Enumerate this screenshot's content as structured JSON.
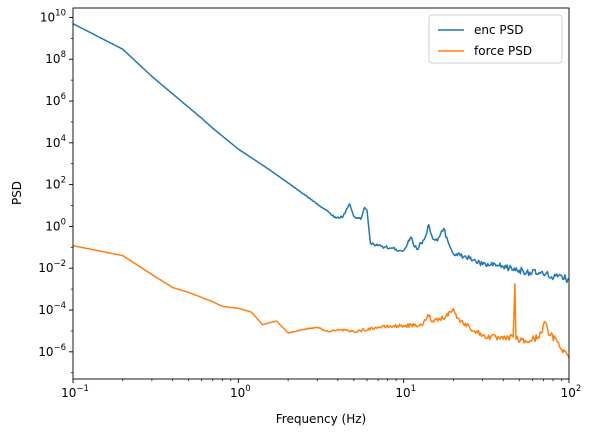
{
  "chart_data": {
    "type": "line",
    "title": "",
    "xlabel": "Frequency (Hz)",
    "ylabel": "PSD",
    "xscale": "log",
    "yscale": "log",
    "xlim": [
      0.1,
      100
    ],
    "ylim_exponent": [
      -7.3,
      10.45
    ],
    "grid": false,
    "legend_position": "top-right",
    "x_ticks": [
      {
        "value": 0.1,
        "base": "10",
        "exp": "−1"
      },
      {
        "value": 1,
        "base": "10",
        "exp": "0"
      },
      {
        "value": 10,
        "base": "10",
        "exp": "1"
      },
      {
        "value": 100,
        "base": "10",
        "exp": "2"
      }
    ],
    "y_ticks": [
      {
        "value": 1e-06,
        "base": "10",
        "exp": "−6"
      },
      {
        "value": 0.0001,
        "base": "10",
        "exp": "−4"
      },
      {
        "value": 0.01,
        "base": "10",
        "exp": "−2"
      },
      {
        "value": 1.0,
        "base": "10",
        "exp": "0"
      },
      {
        "value": 100.0,
        "base": "10",
        "exp": "2"
      },
      {
        "value": 10000.0,
        "base": "10",
        "exp": "4"
      },
      {
        "value": 1000000.0,
        "base": "10",
        "exp": "6"
      },
      {
        "value": 100000000.0,
        "base": "10",
        "exp": "8"
      },
      {
        "value": 10000000000.0,
        "base": "10",
        "exp": "10"
      }
    ],
    "series": [
      {
        "name": "enc PSD",
        "color": "#1f77b4",
        "points": [
          [
            0.1,
            5000000000.0
          ],
          [
            0.2,
            300000000.0
          ],
          [
            0.3,
            15000000.0
          ],
          [
            0.5,
            500000.0
          ],
          [
            0.6,
            150000.0
          ],
          [
            0.7,
            50000.0
          ],
          [
            1.0,
            5000.0
          ],
          [
            1.5,
            600.0
          ],
          [
            2.0,
            120.0
          ],
          [
            3.0,
            12.0
          ],
          [
            3.5,
            5
          ],
          [
            3.9,
            2.5
          ],
          [
            4.3,
            3
          ],
          [
            4.7,
            12
          ],
          [
            5.0,
            3
          ],
          [
            5.5,
            2.2
          ],
          [
            5.8,
            8
          ],
          [
            6.0,
            6
          ],
          [
            6.3,
            0.15
          ],
          [
            7.0,
            0.12
          ],
          [
            9.0,
            0.08
          ],
          [
            10.0,
            0.07
          ],
          [
            11.0,
            0.3
          ],
          [
            12.0,
            0.08
          ],
          [
            13.5,
            0.3
          ],
          [
            14.2,
            1.2
          ],
          [
            15.0,
            0.25
          ],
          [
            16.0,
            0.2
          ],
          [
            17.5,
            0.8
          ],
          [
            18.5,
            0.2
          ],
          [
            20.0,
            0.05
          ],
          [
            25.0,
            0.03
          ],
          [
            30.0,
            0.015
          ],
          [
            40.0,
            0.012
          ],
          [
            50.0,
            0.008
          ],
          [
            70.0,
            0.005
          ],
          [
            100.0,
            0.003
          ]
        ]
      },
      {
        "name": "force PSD",
        "color": "#ff7f0e",
        "points": [
          [
            0.1,
            0.12
          ],
          [
            0.2,
            0.04
          ],
          [
            0.3,
            0.005
          ],
          [
            0.4,
            0.0012
          ],
          [
            0.5,
            0.0007
          ],
          [
            0.7,
            0.00025
          ],
          [
            0.8,
            0.00015
          ],
          [
            1.0,
            0.00012
          ],
          [
            1.2,
            8e-05
          ],
          [
            1.4,
            2e-05
          ],
          [
            1.7,
            3e-05
          ],
          [
            2.0,
            8e-06
          ],
          [
            2.5,
            1.2e-05
          ],
          [
            3.0,
            1.5e-05
          ],
          [
            3.5,
            9e-06
          ],
          [
            4.0,
            1.2e-05
          ],
          [
            5.0,
            9e-06
          ],
          [
            7.0,
            1.5e-05
          ],
          [
            10.0,
            1.8e-05
          ],
          [
            13.0,
            1.8e-05
          ],
          [
            14.0,
            6e-05
          ],
          [
            15.0,
            3e-05
          ],
          [
            18.0,
            5e-05
          ],
          [
            20.0,
            0.00012
          ],
          [
            21.0,
            4e-05
          ],
          [
            25.0,
            1.5e-05
          ],
          [
            30.0,
            6e-06
          ],
          [
            40.0,
            4e-06
          ],
          [
            46.0,
            5e-06
          ],
          [
            47.0,
            0.0018
          ],
          [
            47.8,
            4e-06
          ],
          [
            55.0,
            3e-06
          ],
          [
            65.0,
            5e-06
          ],
          [
            72.0,
            2.5e-05
          ],
          [
            75.0,
            8e-06
          ],
          [
            85.0,
            3e-06
          ],
          [
            100.0,
            5e-07
          ]
        ]
      }
    ]
  }
}
